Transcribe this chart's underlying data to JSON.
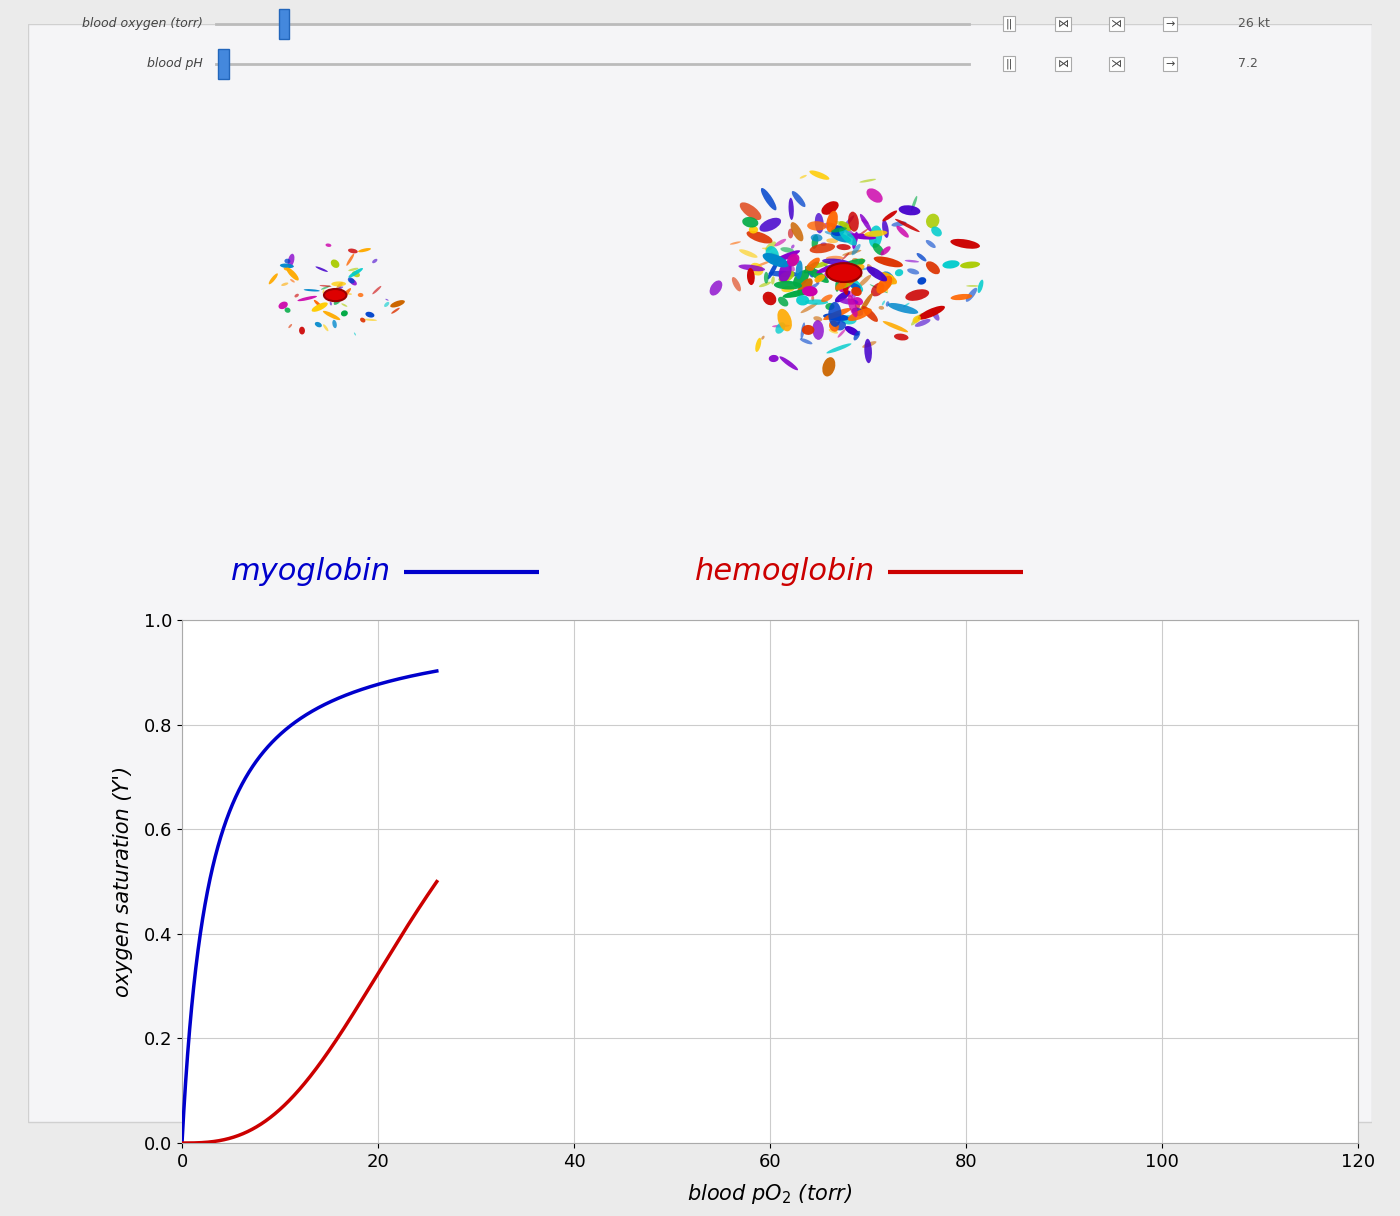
{
  "bg_color": "#ebebeb",
  "plot_bg_color": "#ffffff",
  "slider1_label": "blood oxygen (torr)",
  "slider2_label": "blood pH",
  "slider1_value": "26 kt",
  "slider2_value": "7.2",
  "myoglobin_label": "myoglobin",
  "hemoglobin_label": "hemoglobin",
  "myoglobin_color": "#0000cc",
  "hemoglobin_color": "#cc0000",
  "xlim": [
    0,
    120
  ],
  "ylim": [
    0.0,
    1.0
  ],
  "xticks": [
    0,
    20,
    40,
    60,
    80,
    100,
    120
  ],
  "yticks": [
    0.0,
    0.2,
    0.4,
    0.6,
    0.8,
    1.0
  ],
  "grid_color": "#cccccc",
  "myoglobin_Kd": 2.8,
  "hemoglobin_n": 2.8,
  "hemoglobin_p50": 26.0,
  "x_max_shown": 26,
  "label_fontsize": 22,
  "tick_fontsize": 13,
  "axis_fontsize": 15,
  "line_width": 2.5,
  "fig_border_color": "#c0c0c0"
}
